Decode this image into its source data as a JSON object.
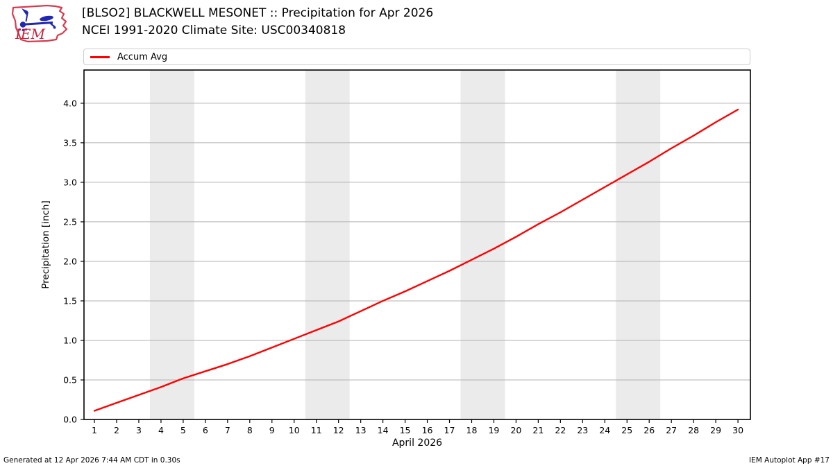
{
  "branding": {
    "logo_text": "IEM"
  },
  "legend": {
    "items": [
      {
        "label": "Accum Avg",
        "color": "#ff0000"
      }
    ]
  },
  "footer": {
    "generated": "Generated at 12 Apr 2026 7:44 AM CDT in 0.30s",
    "app": "IEM Autoplot App #17"
  },
  "chart_data": {
    "type": "line",
    "title": "[BLSO2] BLACKWELL MESONET :: Precipitation for Apr 2026",
    "subtitle": "NCEI 1991-2020 Climate Site: USC00340818",
    "xlabel": "April 2026",
    "ylabel": "Precipitation [inch]",
    "x": [
      1,
      2,
      3,
      4,
      5,
      6,
      7,
      8,
      9,
      10,
      11,
      12,
      13,
      14,
      15,
      16,
      17,
      18,
      19,
      20,
      21,
      22,
      23,
      24,
      25,
      26,
      27,
      28,
      29,
      30
    ],
    "series": [
      {
        "name": "Accum Avg",
        "color": "#ff0000",
        "values": [
          0.11,
          0.21,
          0.31,
          0.41,
          0.52,
          0.61,
          0.7,
          0.8,
          0.91,
          1.02,
          1.13,
          1.24,
          1.37,
          1.5,
          1.62,
          1.75,
          1.88,
          2.02,
          2.16,
          2.31,
          2.47,
          2.62,
          2.78,
          2.94,
          3.1,
          3.26,
          3.43,
          3.59,
          3.76,
          3.92
        ]
      }
    ],
    "xlim": [
      0.53,
      30.56
    ],
    "ylim": [
      0,
      4.42
    ],
    "xticks": [
      1,
      2,
      3,
      4,
      5,
      6,
      7,
      8,
      9,
      10,
      11,
      12,
      13,
      14,
      15,
      16,
      17,
      18,
      19,
      20,
      21,
      22,
      23,
      24,
      25,
      26,
      27,
      28,
      29,
      30
    ],
    "yticks": [
      0.0,
      0.5,
      1.0,
      1.5,
      2.0,
      2.5,
      3.0,
      3.5,
      4.0
    ],
    "grid": "horizontal",
    "grid_color": "#b2b2b2",
    "weekend_bands": [
      [
        3.5,
        5.5
      ],
      [
        10.5,
        12.5
      ],
      [
        17.5,
        19.5
      ],
      [
        24.5,
        26.5
      ]
    ],
    "band_color": "#ebebeb",
    "legend_position": "top"
  }
}
